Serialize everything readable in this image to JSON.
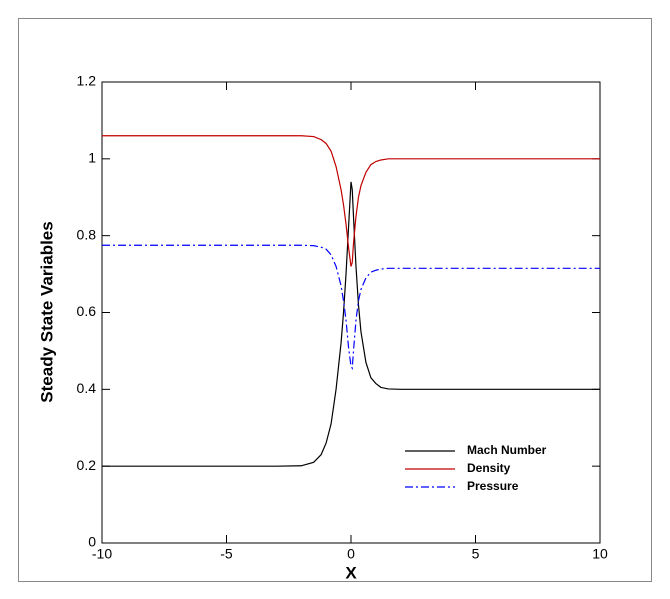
{
  "chart_data": {
    "type": "line",
    "xlabel": "X",
    "ylabel": "Steady State Variables",
    "x": [
      -10,
      -5,
      -3,
      -2,
      -1.5,
      -1.2,
      -1,
      -0.8,
      -0.6,
      -0.4,
      -0.3,
      -0.2,
      -0.1,
      0,
      0.05,
      0.1,
      0.2,
      0.3,
      0.4,
      0.6,
      0.8,
      1,
      1.2,
      1.5,
      2,
      3,
      5,
      10
    ],
    "series": [
      {
        "name": "Mach Number",
        "color": "#000000",
        "dash": "solid",
        "values": [
          0.2,
          0.2,
          0.2,
          0.201,
          0.21,
          0.23,
          0.26,
          0.31,
          0.4,
          0.52,
          0.6,
          0.7,
          0.82,
          0.94,
          0.92,
          0.85,
          0.72,
          0.62,
          0.55,
          0.47,
          0.43,
          0.415,
          0.405,
          0.401,
          0.4,
          0.4,
          0.4,
          0.4
        ]
      },
      {
        "name": "Density",
        "color": "#c00000",
        "dash": "solid",
        "values": [
          1.06,
          1.06,
          1.06,
          1.06,
          1.058,
          1.05,
          1.04,
          1.02,
          0.98,
          0.92,
          0.88,
          0.83,
          0.77,
          0.72,
          0.73,
          0.78,
          0.85,
          0.9,
          0.93,
          0.965,
          0.985,
          0.993,
          0.997,
          1.0,
          1.0,
          1.0,
          1.0,
          1.0
        ]
      },
      {
        "name": "Pressure",
        "color": "#0000ff",
        "dash": "dashdot",
        "values": [
          0.775,
          0.775,
          0.775,
          0.775,
          0.774,
          0.77,
          0.765,
          0.75,
          0.72,
          0.67,
          0.63,
          0.58,
          0.51,
          0.46,
          0.455,
          0.5,
          0.58,
          0.63,
          0.66,
          0.69,
          0.705,
          0.71,
          0.713,
          0.715,
          0.715,
          0.715,
          0.715,
          0.715
        ]
      }
    ],
    "xlim": [
      -10,
      10
    ],
    "xticks": [
      -10,
      -5,
      0,
      5,
      10
    ],
    "ylim": [
      0,
      1.2
    ],
    "yticks": [
      0,
      0.2,
      0.4,
      0.6,
      0.8,
      1,
      1.2
    ],
    "grid": false,
    "legend": "lower right"
  }
}
